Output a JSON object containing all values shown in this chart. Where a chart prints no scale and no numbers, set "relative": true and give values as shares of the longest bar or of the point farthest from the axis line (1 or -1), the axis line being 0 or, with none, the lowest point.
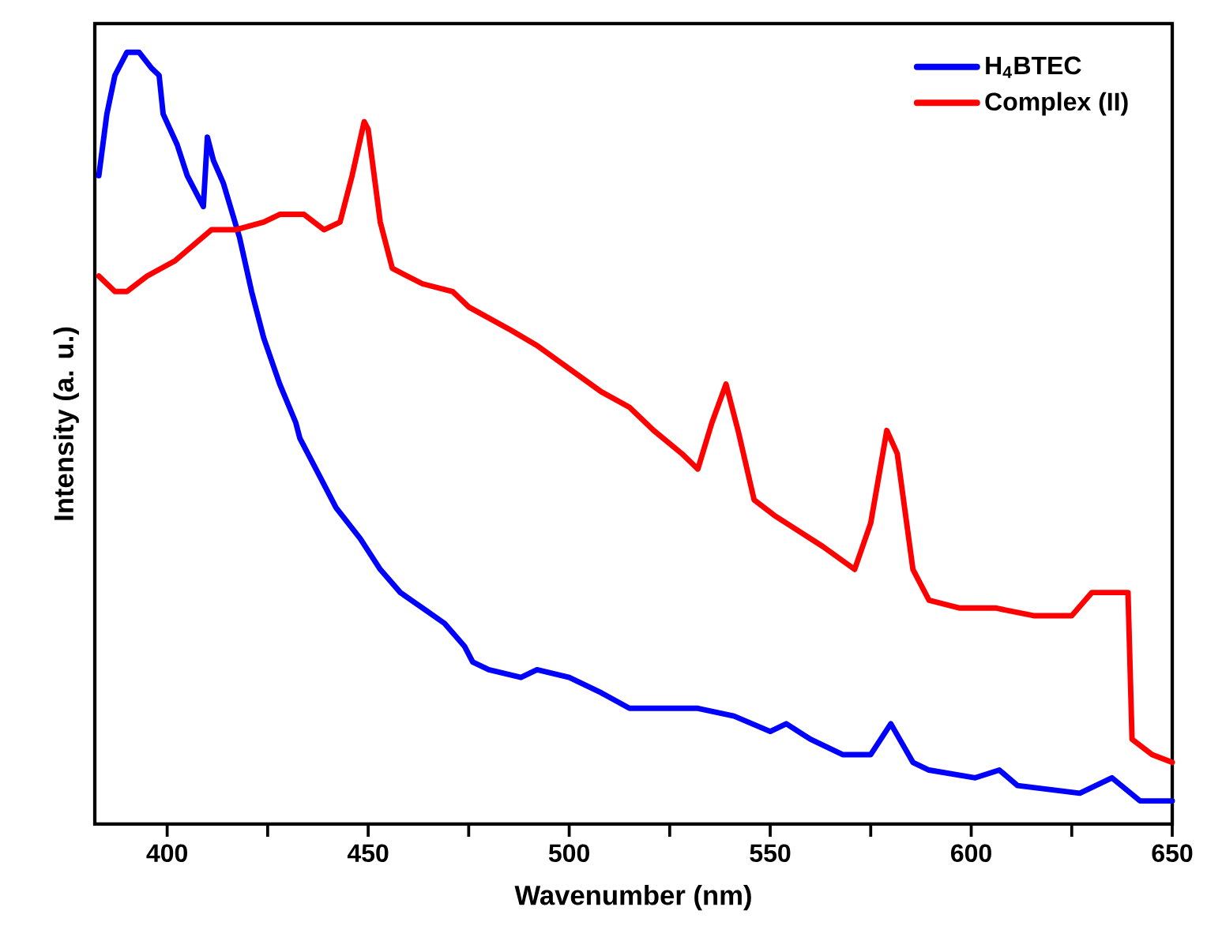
{
  "chart_data": {
    "type": "line",
    "relative": true,
    "xlabel": "Wavenumber (nm)",
    "ylabel": "Intensity (a. u.)",
    "xlim": [
      382,
      650
    ],
    "xticks": [
      400,
      {
        "value": 425,
        "label": null
      },
      450,
      {
        "value": 475,
        "label": null
      },
      500,
      {
        "value": 525,
        "label": null
      },
      550,
      {
        "value": 575,
        "label": null
      },
      600,
      {
        "value": 625,
        "label": null
      },
      650
    ],
    "legend": "top right",
    "line_style": "solid",
    "series": [
      {
        "name": "H$_{4}$BTEC",
        "color": "#0000ff",
        "x": [
          383,
          385,
          387,
          390,
          393,
          396,
          398,
          399,
          402.5,
          405,
          409,
          410,
          411.5,
          414,
          418,
          421,
          424,
          428,
          432,
          433,
          438,
          442,
          448,
          453,
          458,
          463.5,
          469,
          474,
          476,
          480,
          488,
          492,
          500,
          508,
          515,
          521,
          532,
          541,
          550,
          554,
          560,
          568,
          575,
          580,
          585.5,
          589.5,
          601,
          607,
          611.5,
          627,
          635,
          642,
          650
        ],
        "values": [
          0.84,
          0.92,
          0.97,
          1.0,
          1.0,
          0.98,
          0.97,
          0.92,
          0.88,
          0.84,
          0.8,
          0.89,
          0.86,
          0.83,
          0.76,
          0.69,
          0.63,
          0.57,
          0.52,
          0.5,
          0.45,
          0.41,
          0.37,
          0.33,
          0.3,
          0.28,
          0.26,
          0.23,
          0.21,
          0.2,
          0.19,
          0.2,
          0.19,
          0.17,
          0.15,
          0.15,
          0.15,
          0.14,
          0.12,
          0.13,
          0.11,
          0.09,
          0.09,
          0.13,
          0.08,
          0.07,
          0.06,
          0.07,
          0.05,
          0.04,
          0.06,
          0.03,
          0.03
        ]
      },
      {
        "name": "Complex (II)",
        "color": "#ff0000",
        "x": [
          383,
          387,
          390,
          395,
          402,
          411,
          417,
          424,
          428,
          434,
          439,
          443,
          446,
          449,
          450,
          453,
          456,
          463.5,
          471,
          475,
          485.5,
          492,
          500,
          508,
          515,
          521,
          528,
          532,
          535.5,
          539,
          542,
          546,
          551,
          563,
          571,
          575,
          579,
          581.6,
          585.5,
          589.5,
          597,
          606,
          615.5,
          625,
          630,
          634,
          639,
          640,
          645,
          650
        ],
        "values": [
          0.71,
          0.69,
          0.69,
          0.71,
          0.73,
          0.77,
          0.77,
          0.78,
          0.79,
          0.79,
          0.77,
          0.78,
          0.84,
          0.91,
          0.9,
          0.78,
          0.72,
          0.7,
          0.69,
          0.67,
          0.64,
          0.62,
          0.59,
          0.56,
          0.54,
          0.51,
          0.48,
          0.46,
          0.52,
          0.57,
          0.51,
          0.42,
          0.4,
          0.36,
          0.33,
          0.39,
          0.51,
          0.48,
          0.33,
          0.29,
          0.28,
          0.28,
          0.27,
          0.27,
          0.3,
          0.3,
          0.3,
          0.11,
          0.09,
          0.08
        ]
      }
    ]
  }
}
